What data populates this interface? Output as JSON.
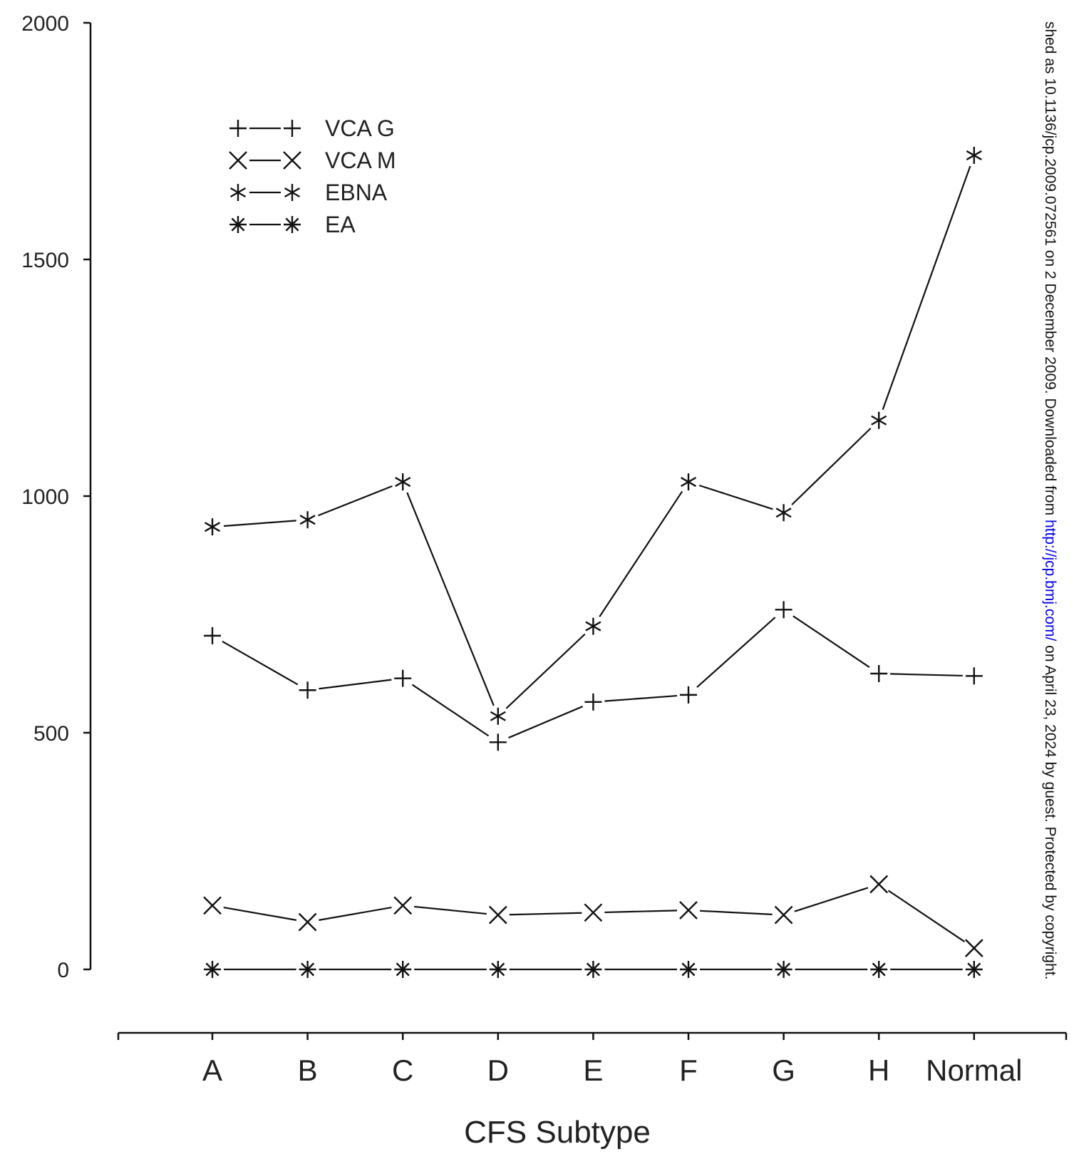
{
  "chart_data": {
    "type": "line",
    "categories": [
      "A",
      "B",
      "C",
      "D",
      "E",
      "F",
      "G",
      "H",
      "Normal"
    ],
    "series": [
      {
        "name": "VCA G",
        "marker": "plus",
        "values": [
          705,
          590,
          615,
          480,
          565,
          580,
          760,
          625,
          620
        ]
      },
      {
        "name": "VCA M",
        "marker": "cross",
        "values": [
          135,
          100,
          135,
          115,
          120,
          125,
          115,
          180,
          45
        ]
      },
      {
        "name": "EBNA",
        "marker": "asterisk",
        "values": [
          935,
          950,
          1030,
          535,
          725,
          1030,
          965,
          1160,
          1720
        ]
      },
      {
        "name": "EA",
        "marker": "star",
        "values": [
          0,
          0,
          0,
          0,
          0,
          0,
          0,
          0,
          0
        ]
      }
    ],
    "title": "",
    "xlabel": "CFS Subtype",
    "ylabel": "",
    "ylim": [
      0,
      2000
    ],
    "yticks": [
      "0",
      "500",
      "1000",
      "1500",
      "2000"
    ],
    "grid": false,
    "legend_position": "top-left",
    "line_color": "#111111"
  },
  "side_note": {
    "before": "shed as 10.1136/jcp.2009.072561 on 2 December 2009. Downloaded from ",
    "link": "http://jcp.bmj.com/",
    "after": " on April 23, 2024 by guest. Protected by copyright.",
    "link_color": "#0000ee"
  }
}
